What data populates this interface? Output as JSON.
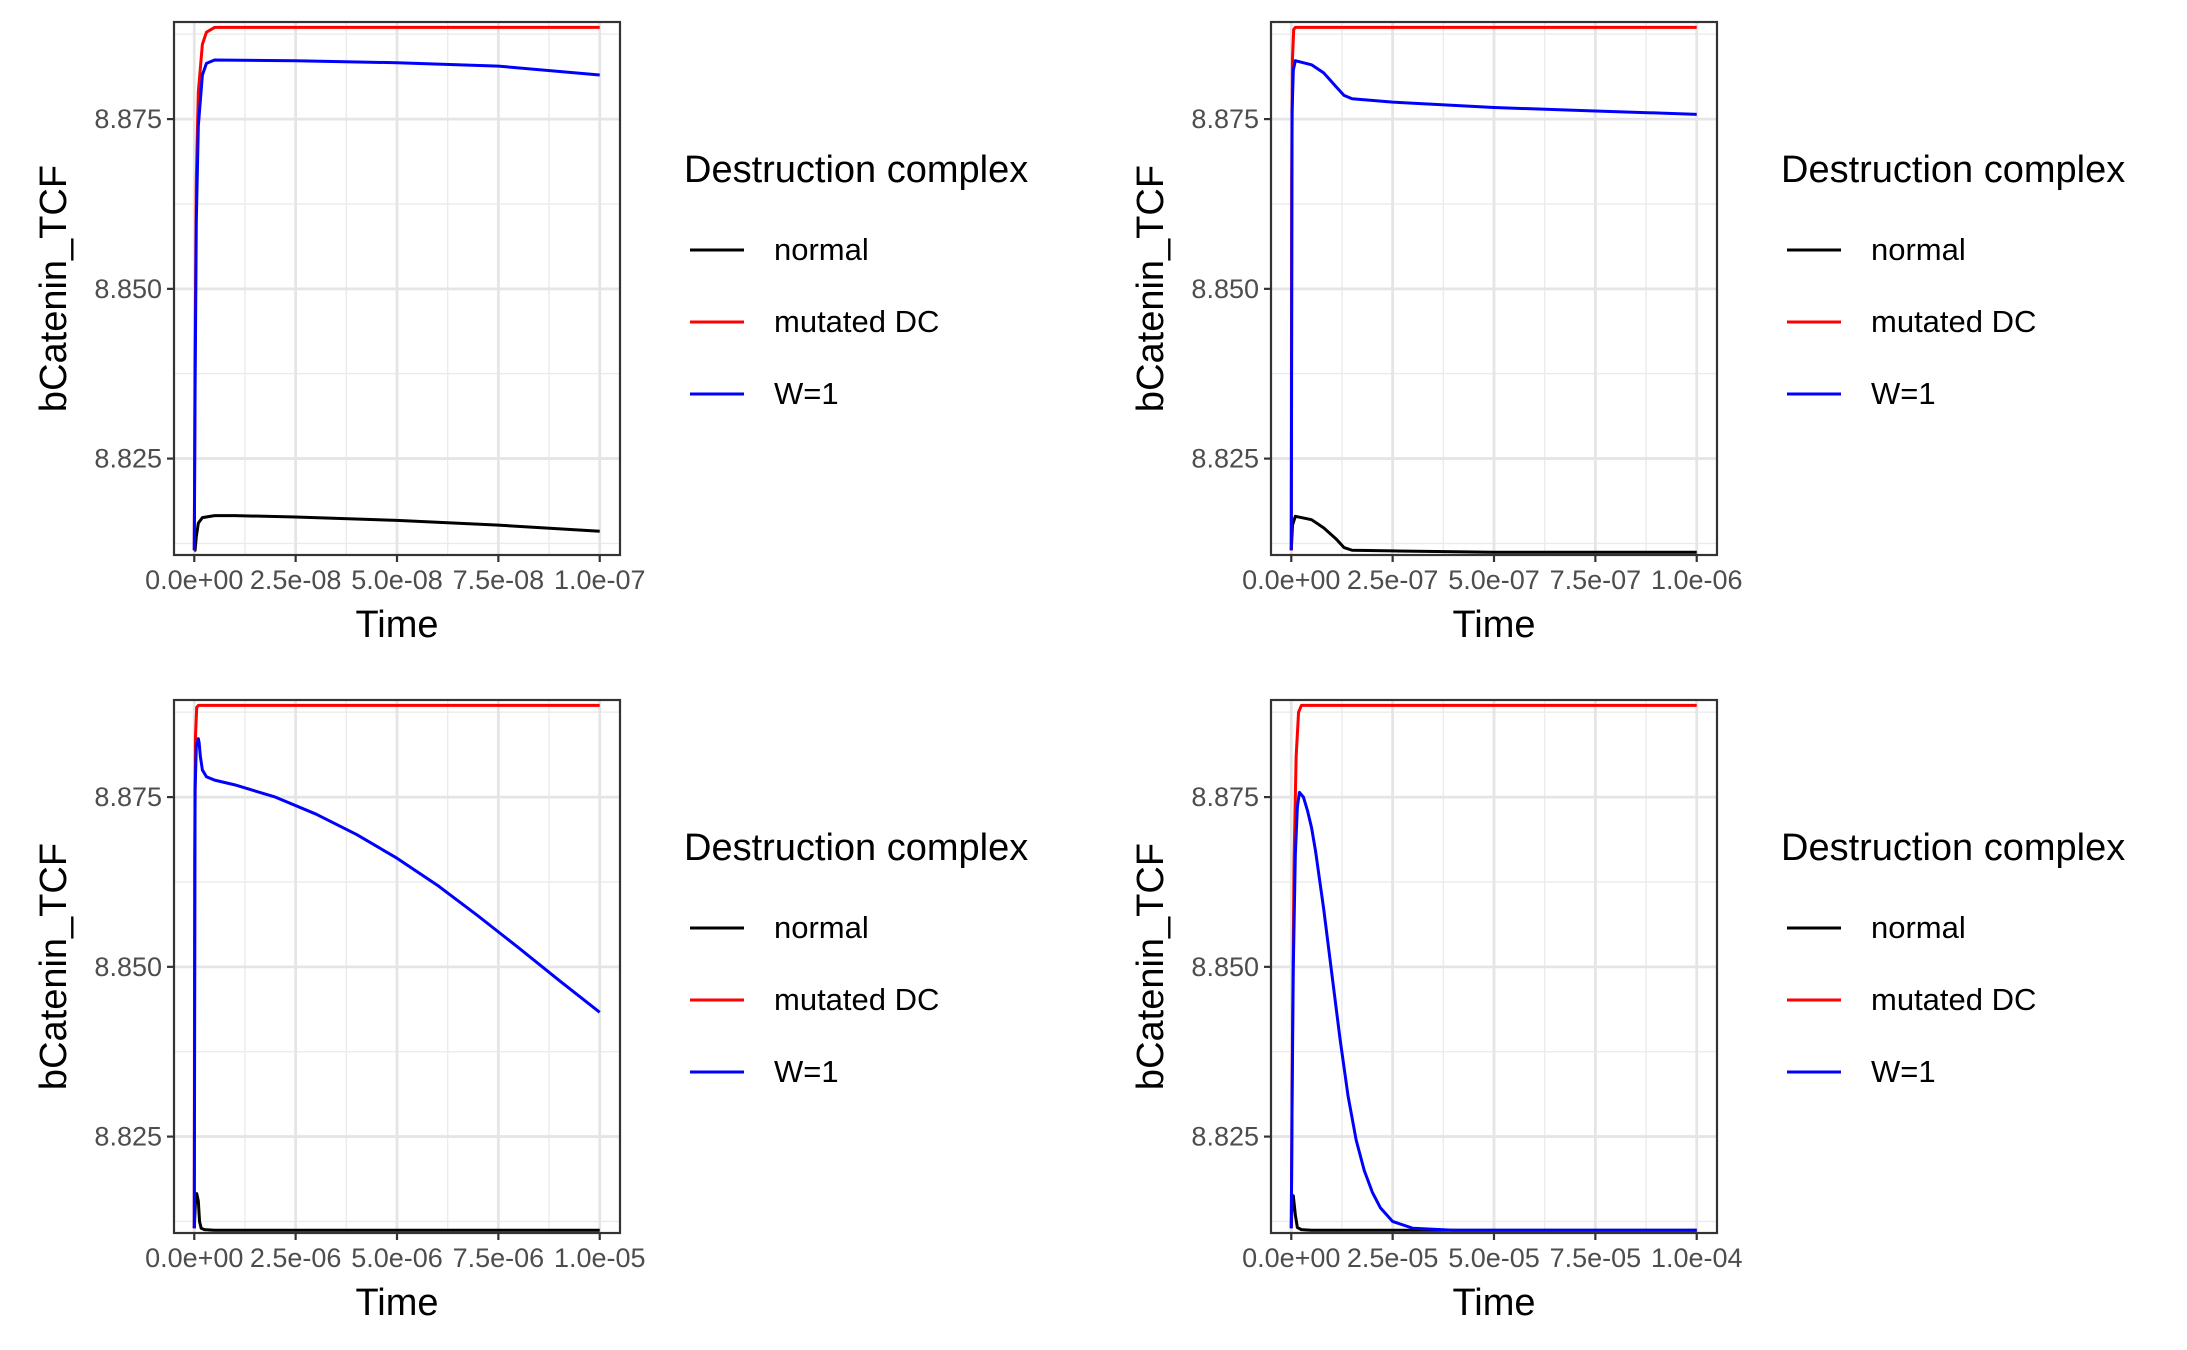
{
  "chart_data": [
    {
      "type": "line",
      "xlabel": "Time",
      "ylabel": "bCatenin_TCF",
      "xlim": [
        -5e-09,
        1.05e-07
      ],
      "ylim": [
        8.8108,
        8.8893
      ],
      "xticks": [
        0,
        2.5e-08,
        5e-08,
        7.5e-08,
        1e-07
      ],
      "xtick_labels": [
        "0.0e+00",
        "2.5e-08",
        "5.0e-08",
        "7.5e-08",
        "1.0e-07"
      ],
      "yticks": [
        8.825,
        8.85,
        8.875
      ],
      "ytick_labels": [
        "8.825",
        "8.850",
        "8.875"
      ],
      "grid": true,
      "legend": {
        "title": "Destruction complex",
        "position": "right"
      },
      "series": [
        {
          "name": "normal",
          "color": "#000000",
          "x": [
            0,
            2e-10,
            5e-10,
            1e-09,
            2e-09,
            5e-09,
            1e-08,
            2.5e-08,
            5e-08,
            7.5e-08,
            1e-07
          ],
          "y": [
            8.8115,
            8.8115,
            8.8135,
            8.8155,
            8.8163,
            8.8166,
            8.8166,
            8.8164,
            8.8159,
            8.8152,
            8.8143
          ]
        },
        {
          "name": "mutated DC",
          "color": "#ff0000",
          "x": [
            0,
            2e-10,
            5e-10,
            1e-09,
            2e-09,
            3e-09,
            5e-09,
            2.5e-08,
            5e-08,
            7.5e-08,
            1e-07
          ],
          "y": [
            8.8115,
            8.84,
            8.866,
            8.879,
            8.886,
            8.8878,
            8.8885,
            8.8885,
            8.8885,
            8.8885,
            8.8885
          ]
        },
        {
          "name": "W=1",
          "color": "#0000ff",
          "x": [
            0,
            2e-10,
            5e-10,
            1e-09,
            2e-09,
            3e-09,
            5e-09,
            2.5e-08,
            5e-08,
            7.5e-08,
            1e-07
          ],
          "y": [
            8.8115,
            8.835,
            8.86,
            8.874,
            8.8815,
            8.8832,
            8.8837,
            8.8836,
            8.8833,
            8.8828,
            8.8815
          ]
        }
      ]
    },
    {
      "type": "line",
      "xlabel": "Time",
      "ylabel": "bCatenin_TCF",
      "xlim": [
        -5e-08,
        1.05e-06
      ],
      "ylim": [
        8.8108,
        8.8893
      ],
      "xticks": [
        0,
        2.5e-07,
        5e-07,
        7.5e-07,
        1e-06
      ],
      "xtick_labels": [
        "0.0e+00",
        "2.5e-07",
        "5.0e-07",
        "7.5e-07",
        "1.0e-06"
      ],
      "yticks": [
        8.825,
        8.85,
        8.875
      ],
      "ytick_labels": [
        "8.825",
        "8.850",
        "8.875"
      ],
      "grid": true,
      "legend": {
        "title": "Destruction complex",
        "position": "right"
      },
      "series": [
        {
          "name": "normal",
          "color": "#000000",
          "x": [
            0,
            3e-09,
            1e-08,
            5e-08,
            8e-08,
            1.1e-07,
            1.3e-07,
            1.5e-07,
            2.5e-07,
            5e-07,
            7.5e-07,
            1e-06
          ],
          "y": [
            8.8115,
            8.8152,
            8.8165,
            8.816,
            8.8148,
            8.8132,
            8.8119,
            8.8115,
            8.8114,
            8.8112,
            8.8112,
            8.8112
          ]
        },
        {
          "name": "mutated DC",
          "color": "#ff0000",
          "x": [
            0,
            1e-09,
            3e-09,
            6e-09,
            1e-08,
            2.5e-07,
            5e-07,
            7.5e-07,
            1e-06
          ],
          "y": [
            8.8115,
            8.866,
            8.884,
            8.8882,
            8.8885,
            8.8885,
            8.8885,
            8.8885,
            8.8885
          ]
        },
        {
          "name": "W=1",
          "color": "#0000ff",
          "x": [
            0,
            2e-09,
            5e-09,
            1e-08,
            5e-08,
            8e-08,
            1.1e-07,
            1.3e-07,
            1.5e-07,
            2.5e-07,
            5e-07,
            7.5e-07,
            1e-06
          ],
          "y": [
            8.8115,
            8.876,
            8.8822,
            8.8836,
            8.883,
            8.8818,
            8.8798,
            8.8785,
            8.878,
            8.8775,
            8.8767,
            8.8762,
            8.8757
          ]
        }
      ]
    },
    {
      "type": "line",
      "xlabel": "Time",
      "ylabel": "bCatenin_TCF",
      "xlim": [
        -5e-07,
        1.05e-05
      ],
      "ylim": [
        8.8108,
        8.8893
      ],
      "xticks": [
        0,
        2.5e-06,
        5e-06,
        7.5e-06,
        1e-05
      ],
      "xtick_labels": [
        "0.0e+00",
        "2.5e-06",
        "5.0e-06",
        "7.5e-06",
        "1.0e-05"
      ],
      "yticks": [
        8.825,
        8.85,
        8.875
      ],
      "ytick_labels": [
        "8.825",
        "8.850",
        "8.875"
      ],
      "grid": true,
      "legend": {
        "title": "Destruction complex",
        "position": "right"
      },
      "series": [
        {
          "name": "normal",
          "color": "#000000",
          "x": [
            0,
            3e-08,
            6e-08,
            1e-07,
            1.3e-07,
            1.7e-07,
            2.5e-07,
            5e-07,
            1e-06,
            2.5e-06,
            5e-06,
            7.5e-06,
            1e-05
          ],
          "y": [
            8.8115,
            8.8155,
            8.8166,
            8.8155,
            8.8125,
            8.8115,
            8.8113,
            8.8112,
            8.8112,
            8.8112,
            8.8112,
            8.8112,
            8.8112
          ]
        },
        {
          "name": "mutated DC",
          "color": "#ff0000",
          "x": [
            0,
            1e-08,
            3e-08,
            6e-08,
            1e-07,
            2.5e-06,
            5e-06,
            7.5e-06,
            1e-05
          ],
          "y": [
            8.8115,
            8.866,
            8.884,
            8.8882,
            8.8885,
            8.8885,
            8.8885,
            8.8885,
            8.8885
          ]
        },
        {
          "name": "W=1",
          "color": "#0000ff",
          "x": [
            0,
            2e-08,
            5e-08,
            1e-07,
            1.2e-07,
            1.5e-07,
            2e-07,
            3e-07,
            5e-07,
            1e-06,
            2e-06,
            3e-06,
            4e-06,
            5e-06,
            6e-06,
            7e-06,
            8e-06,
            9e-06,
            1e-05
          ],
          "y": [
            8.8115,
            8.876,
            8.8825,
            8.8836,
            8.883,
            8.881,
            8.879,
            8.878,
            8.8775,
            8.8768,
            8.875,
            8.8725,
            8.8695,
            8.866,
            8.862,
            8.8575,
            8.8528,
            8.848,
            8.8433
          ]
        }
      ]
    },
    {
      "type": "line",
      "xlabel": "Time",
      "ylabel": "bCatenin_TCF",
      "xlim": [
        -5e-06,
        0.000105
      ],
      "ylim": [
        8.8108,
        8.8893
      ],
      "xticks": [
        0,
        2.5e-05,
        5e-05,
        7.5e-05,
        0.0001
      ],
      "xtick_labels": [
        "0.0e+00",
        "2.5e-05",
        "5.0e-05",
        "7.5e-05",
        "1.0e-04"
      ],
      "yticks": [
        8.825,
        8.85,
        8.875
      ],
      "ytick_labels": [
        "8.825",
        "8.850",
        "8.875"
      ],
      "grid": true,
      "legend": {
        "title": "Destruction complex",
        "position": "right"
      },
      "series": [
        {
          "name": "normal",
          "color": "#000000",
          "x": [
            0,
            2e-07,
            5e-07,
            1e-06,
            1.5e-06,
            2.5e-06,
            5e-06,
            2.5e-05,
            5e-05,
            7.5e-05,
            0.0001
          ],
          "y": [
            8.8115,
            8.8155,
            8.8163,
            8.8135,
            8.8116,
            8.8113,
            8.8112,
            8.8112,
            8.8112,
            8.8112,
            8.8112
          ]
        },
        {
          "name": "mutated DC",
          "color": "#ff0000",
          "x": [
            0,
            3e-07,
            7e-07,
            1.2e-06,
            1.8e-06,
            2.5e-06,
            2.5e-05,
            5e-05,
            7.5e-05,
            0.0001
          ],
          "y": [
            8.8115,
            8.84,
            8.866,
            8.881,
            8.8875,
            8.8885,
            8.8885,
            8.8885,
            8.8885,
            8.8885
          ]
        },
        {
          "name": "W=1",
          "color": "#0000ff",
          "x": [
            0,
            2e-07,
            5e-07,
            1e-06,
            1.5e-06,
            2e-06,
            3e-06,
            4e-06,
            5e-06,
            6e-06,
            8e-06,
            1e-05,
            1.2e-05,
            1.4e-05,
            1.6e-05,
            1.8e-05,
            2e-05,
            2.2e-05,
            2.5e-05,
            3e-05,
            4e-05,
            5e-05,
            7.5e-05,
            0.0001
          ],
          "y": [
            8.8115,
            8.83,
            8.85,
            8.8665,
            8.8735,
            8.8757,
            8.875,
            8.873,
            8.8705,
            8.867,
            8.8585,
            8.849,
            8.8395,
            8.831,
            8.8245,
            8.82,
            8.8168,
            8.8145,
            8.8125,
            8.8115,
            8.8112,
            8.8112,
            8.8112,
            8.8112
          ]
        }
      ]
    }
  ]
}
